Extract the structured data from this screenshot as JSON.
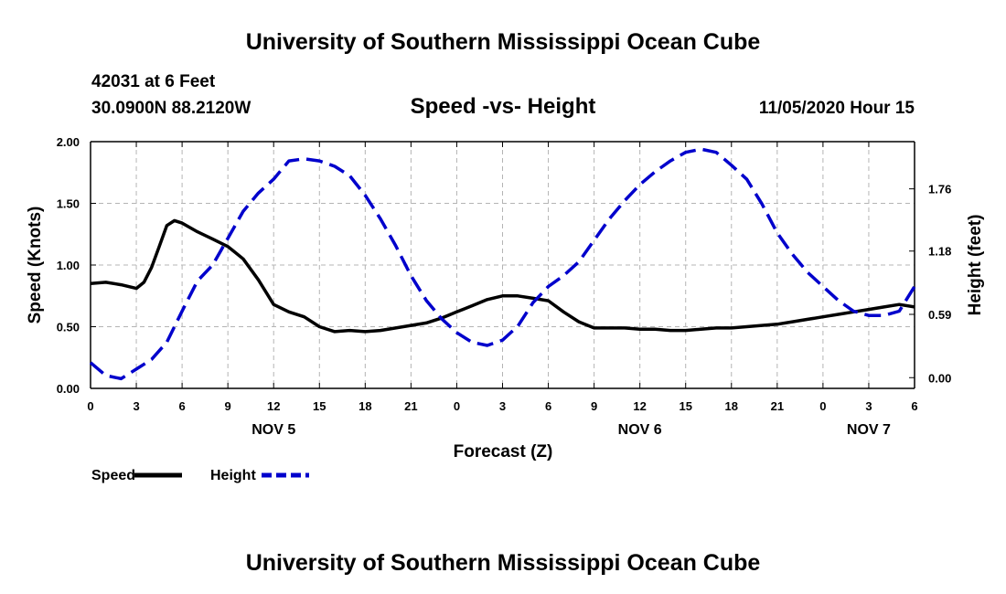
{
  "header": {
    "title": "University of Southern Mississippi Ocean Cube",
    "station": "42031 at 6 Feet",
    "coords": "30.0900N 88.2120W",
    "subtitle": "Speed -vs- Height",
    "timestamp": "11/05/2020 Hour 15"
  },
  "footer": {
    "title": "University of Southern Mississippi Ocean Cube"
  },
  "chart_data": {
    "type": "line",
    "title": "Speed -vs- Height",
    "xlabel": "Forecast (Z)",
    "ylabel": "Speed (Knots)",
    "y2label": "Height (feet)",
    "x_range_hours": [
      0,
      54
    ],
    "x_ticks": [
      {
        "h": 0,
        "label": "0"
      },
      {
        "h": 3,
        "label": "3"
      },
      {
        "h": 6,
        "label": "6"
      },
      {
        "h": 9,
        "label": "9"
      },
      {
        "h": 12,
        "label": "12"
      },
      {
        "h": 15,
        "label": "15"
      },
      {
        "h": 18,
        "label": "18"
      },
      {
        "h": 21,
        "label": "21"
      },
      {
        "h": 24,
        "label": "0"
      },
      {
        "h": 27,
        "label": "3"
      },
      {
        "h": 30,
        "label": "6"
      },
      {
        "h": 33,
        "label": "9"
      },
      {
        "h": 36,
        "label": "12"
      },
      {
        "h": 39,
        "label": "15"
      },
      {
        "h": 42,
        "label": "18"
      },
      {
        "h": 45,
        "label": "21"
      },
      {
        "h": 48,
        "label": "0"
      },
      {
        "h": 51,
        "label": "3"
      },
      {
        "h": 54,
        "label": "6"
      }
    ],
    "day_labels": [
      {
        "h": 12,
        "label": "NOV 5"
      },
      {
        "h": 36,
        "label": "NOV 6"
      },
      {
        "h": 51,
        "label": "NOV 7"
      }
    ],
    "ylim": [
      0,
      2.0
    ],
    "y_ticks": [
      "0.00",
      "0.50",
      "1.00",
      "1.50",
      "2.00"
    ],
    "y_tick_values": [
      0,
      0.5,
      1.0,
      1.5,
      2.0
    ],
    "y2lim": [
      -0.1,
      2.2
    ],
    "y2_ticks": [
      "0.00",
      "0.59",
      "1.18",
      "1.76"
    ],
    "y2_tick_values": [
      0,
      0.59,
      1.18,
      1.76
    ],
    "grid": true,
    "legend": {
      "placement": "bottom-left",
      "entries": [
        {
          "name": "Speed",
          "color": "#000000",
          "style": "solid"
        },
        {
          "name": "Height",
          "color": "#0000cc",
          "style": "dashed"
        }
      ]
    },
    "series": [
      {
        "name": "Speed",
        "axis": "left",
        "color": "#000000",
        "style": "solid",
        "x": [
          0,
          1,
          2,
          3,
          3.5,
          4,
          4.5,
          5,
          5.5,
          6,
          7,
          8,
          9,
          10,
          11,
          12,
          13,
          14,
          15,
          16,
          17,
          18,
          19,
          20,
          21,
          22,
          23,
          24,
          25,
          26,
          27,
          28,
          29,
          30,
          31,
          32,
          33,
          34,
          35,
          36,
          37,
          38,
          39,
          40,
          41,
          42,
          43,
          44,
          45,
          46,
          47,
          48,
          49,
          50,
          51,
          52,
          53,
          54
        ],
        "values": [
          0.85,
          0.86,
          0.84,
          0.81,
          0.86,
          0.98,
          1.15,
          1.32,
          1.36,
          1.34,
          1.27,
          1.21,
          1.15,
          1.05,
          0.88,
          0.68,
          0.62,
          0.58,
          0.5,
          0.46,
          0.47,
          0.46,
          0.47,
          0.49,
          0.51,
          0.53,
          0.57,
          0.62,
          0.67,
          0.72,
          0.75,
          0.75,
          0.73,
          0.71,
          0.62,
          0.54,
          0.49,
          0.49,
          0.49,
          0.48,
          0.48,
          0.47,
          0.47,
          0.48,
          0.49,
          0.49,
          0.5,
          0.51,
          0.52,
          0.54,
          0.56,
          0.58,
          0.6,
          0.62,
          0.64,
          0.66,
          0.68,
          0.66
        ]
      },
      {
        "name": "Height",
        "axis": "right",
        "color": "#0000cc",
        "style": "dashed",
        "x": [
          0,
          1,
          2,
          3,
          4,
          5,
          6,
          7,
          8,
          9,
          10,
          11,
          12,
          13,
          14,
          15,
          16,
          17,
          18,
          19,
          20,
          21,
          22,
          23,
          24,
          25,
          26,
          27,
          28,
          29,
          30,
          31,
          32,
          33,
          34,
          35,
          36,
          37,
          38,
          39,
          40,
          41,
          42,
          43,
          44,
          45,
          46,
          47,
          48,
          49,
          50,
          51,
          52,
          53,
          54
        ],
        "values": [
          0.14,
          0.02,
          -0.01,
          0.08,
          0.17,
          0.33,
          0.62,
          0.9,
          1.05,
          1.3,
          1.55,
          1.72,
          1.85,
          2.02,
          2.04,
          2.02,
          1.97,
          1.88,
          1.7,
          1.48,
          1.23,
          0.95,
          0.72,
          0.55,
          0.42,
          0.33,
          0.3,
          0.35,
          0.48,
          0.7,
          0.85,
          0.95,
          1.08,
          1.28,
          1.48,
          1.65,
          1.8,
          1.92,
          2.02,
          2.1,
          2.13,
          2.1,
          1.98,
          1.85,
          1.62,
          1.35,
          1.15,
          0.98,
          0.85,
          0.72,
          0.62,
          0.58,
          0.58,
          0.62,
          0.85
        ]
      }
    ]
  }
}
